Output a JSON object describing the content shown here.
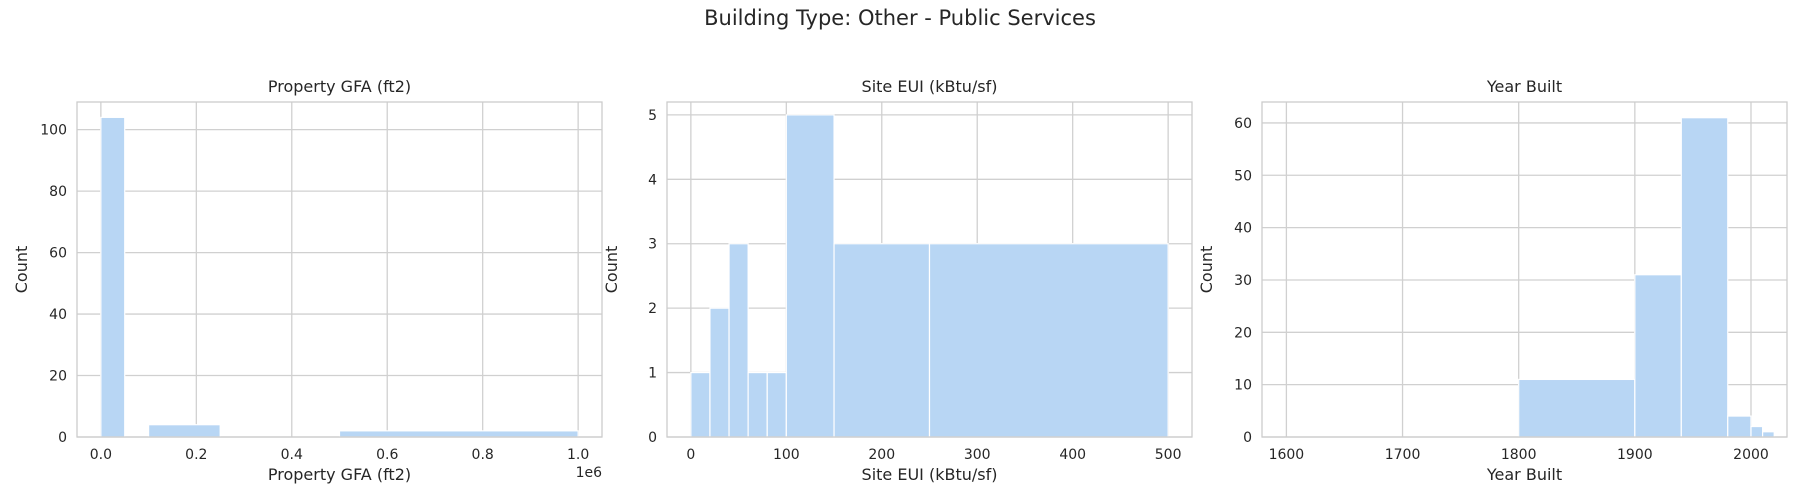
{
  "figure": {
    "title": "Building Type: Other - Public Services"
  },
  "style": {
    "bar_color": "#b8d6f4",
    "grid_color": "#d0d0d0",
    "spine_color": "#cccccc",
    "text_color": "#262626"
  },
  "chart_data": [
    {
      "type": "bar",
      "title": "Property GFA (ft2)",
      "xlabel": "Property GFA (ft2)",
      "ylabel": "Count",
      "xlim": [
        -50000,
        1050000
      ],
      "ylim": [
        0,
        109
      ],
      "xticks": [
        0,
        200000,
        400000,
        600000,
        800000,
        1000000
      ],
      "xtick_labels": [
        "0.0",
        "0.2",
        "0.4",
        "0.6",
        "0.8",
        "1.0"
      ],
      "x_offset_label": "1e6",
      "yticks": [
        0,
        20,
        40,
        60,
        80,
        100
      ],
      "grid": true,
      "bins": [
        {
          "x0": 0,
          "x1": 50000,
          "count": 104
        },
        {
          "x0": 50000,
          "x1": 100000,
          "count": 0
        },
        {
          "x0": 100000,
          "x1": 250000,
          "count": 4
        },
        {
          "x0": 250000,
          "x1": 500000,
          "count": 0
        },
        {
          "x0": 500000,
          "x1": 1000000,
          "count": 2
        }
      ]
    },
    {
      "type": "bar",
      "title": "Site EUI (kBtu/sf)",
      "xlabel": "Site EUI (kBtu/sf)",
      "ylabel": "Count",
      "xlim": [
        -25,
        525
      ],
      "ylim": [
        0,
        5.2
      ],
      "xticks": [
        0,
        100,
        200,
        300,
        400,
        500
      ],
      "xtick_labels": [
        "0",
        "100",
        "200",
        "300",
        "400",
        "500"
      ],
      "yticks": [
        0,
        1,
        2,
        3,
        4,
        5
      ],
      "grid": true,
      "bins": [
        {
          "x0": 0,
          "x1": 20,
          "count": 1
        },
        {
          "x0": 20,
          "x1": 40,
          "count": 2
        },
        {
          "x0": 40,
          "x1": 60,
          "count": 3
        },
        {
          "x0": 60,
          "x1": 80,
          "count": 1
        },
        {
          "x0": 80,
          "x1": 100,
          "count": 1
        },
        {
          "x0": 100,
          "x1": 150,
          "count": 5
        },
        {
          "x0": 150,
          "x1": 250,
          "count": 3
        },
        {
          "x0": 250,
          "x1": 500,
          "count": 3
        }
      ]
    },
    {
      "type": "bar",
      "title": "Year Built",
      "xlabel": "Year Built",
      "ylabel": "Count",
      "xlim": [
        1579,
        2031
      ],
      "ylim": [
        0,
        64
      ],
      "xticks": [
        1600,
        1700,
        1800,
        1900,
        2000
      ],
      "xtick_labels": [
        "1600",
        "1700",
        "1800",
        "1900",
        "2000"
      ],
      "yticks": [
        0,
        10,
        20,
        30,
        40,
        50,
        60
      ],
      "grid": true,
      "bins": [
        {
          "x0": 1600,
          "x1": 1800,
          "count": 0
        },
        {
          "x0": 1800,
          "x1": 1900,
          "count": 11
        },
        {
          "x0": 1900,
          "x1": 1940,
          "count": 31
        },
        {
          "x0": 1940,
          "x1": 1980,
          "count": 61
        },
        {
          "x0": 1980,
          "x1": 2000,
          "count": 4
        },
        {
          "x0": 2000,
          "x1": 2010,
          "count": 2
        },
        {
          "x0": 2010,
          "x1": 2020,
          "count": 1
        }
      ]
    }
  ]
}
